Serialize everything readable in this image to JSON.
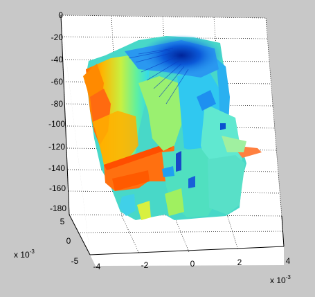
{
  "chart_data": {
    "type": "surface3d",
    "z_axis": {
      "ticks": [
        "0",
        "-20",
        "-40",
        "-60",
        "-80",
        "-100",
        "-120",
        "-140",
        "-160",
        "-180"
      ],
      "range": [
        -180,
        0
      ]
    },
    "x_axis": {
      "ticks": [
        "-4",
        "-2",
        "0",
        "2",
        "4"
      ],
      "range": [
        -4,
        4
      ],
      "multiplier_base": "x 10",
      "multiplier_exp": "-3"
    },
    "y_axis": {
      "ticks": [
        "5",
        "0",
        "-5"
      ],
      "range": [
        -5,
        5
      ],
      "multiplier_base": "x 10",
      "multiplier_exp": "-3"
    },
    "grid": true,
    "colormap": "jet",
    "colors": {
      "background": "#c8c8c8",
      "axes": "#ffffff"
    }
  }
}
